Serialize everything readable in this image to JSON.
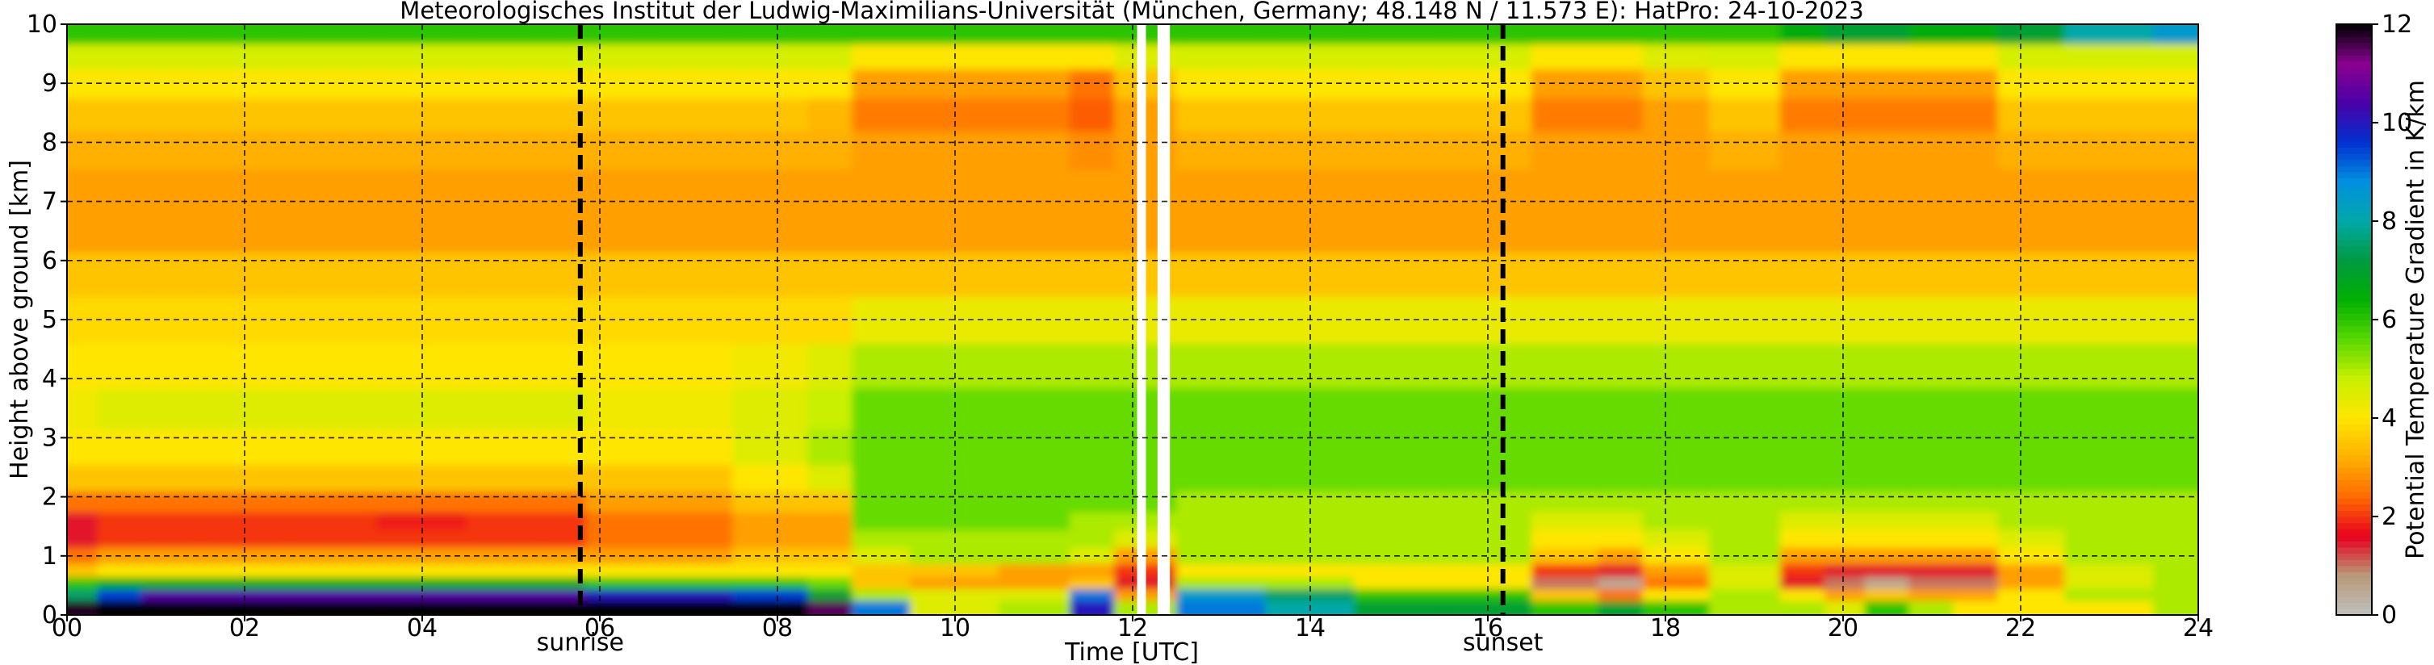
{
  "chart_data": {
    "type": "heatmap",
    "title": "Meteorologisches Institut der Ludwig-Maximilians-Universität (München, Germany; 48.148 N / 11.573 E):    HatPro: 24-10-2023",
    "xlabel": "Time [UTC]",
    "ylabel": "Height above ground [km]",
    "xlim": [
      0,
      24
    ],
    "ylim": [
      0,
      10
    ],
    "x_ticks": [
      0,
      2,
      4,
      6,
      8,
      10,
      12,
      14,
      16,
      18,
      20,
      22,
      24
    ],
    "x_tick_labels": [
      "00",
      "02",
      "04",
      "06",
      "08",
      "10",
      "12",
      "14",
      "16",
      "18",
      "20",
      "22",
      "24"
    ],
    "y_ticks": [
      0,
      1,
      2,
      3,
      4,
      5,
      6,
      7,
      8,
      9,
      10
    ],
    "y_tick_labels": [
      "0",
      "1",
      "2",
      "3",
      "4",
      "5",
      "6",
      "7",
      "8",
      "9",
      "10"
    ],
    "grid": true,
    "colorbar": {
      "label": "Potential Temperature Gradient in K/km",
      "range": [
        0,
        12
      ],
      "ticks": [
        0,
        2,
        4,
        6,
        8,
        10,
        12
      ],
      "tick_labels": [
        "0",
        "2",
        "4",
        "6",
        "8",
        "10",
        "12"
      ],
      "colors": [
        "#c0c0c0",
        "#b89a78",
        "#e8001e",
        "#ff6a00",
        "#ffb000",
        "#ffe600",
        "#c8f000",
        "#58d800",
        "#00b000",
        "#009a40",
        "#00a8a8",
        "#0090e0",
        "#0030d0",
        "#4a00a8",
        "#8a0090",
        "#000000"
      ]
    },
    "events": [
      {
        "label": "sunrise",
        "time": 5.78
      },
      {
        "label": "sunset",
        "time": 16.17
      }
    ],
    "missing_data_intervals": [
      [
        12.05,
        12.15
      ],
      [
        12.28,
        12.42
      ]
    ],
    "field": {
      "x": [
        0,
        0.7,
        1,
        2,
        3,
        4,
        5,
        5.7,
        6,
        7,
        8,
        8.7,
        9,
        10,
        11,
        11.6,
        12,
        13,
        14,
        15,
        16,
        17,
        17.5,
        18,
        19,
        19.6,
        20,
        20.5,
        21,
        21.5,
        22,
        23,
        24
      ],
      "y": [
        0.15,
        0.35,
        0.55,
        0.75,
        1.0,
        1.3,
        1.6,
        1.9,
        2.3,
        2.8,
        3.5,
        4.2,
        5.0,
        5.8,
        6.5,
        7.2,
        7.9,
        8.5,
        9.0,
        9.5,
        9.85
      ],
      "values_by_height": [
        [
          11.8,
          12,
          12,
          12,
          12,
          12,
          12,
          12,
          12,
          12,
          12,
          11.5,
          9,
          4.5,
          5,
          10,
          5,
          9,
          8,
          7,
          7,
          6,
          7,
          6,
          5,
          5,
          4.5,
          6,
          5,
          4,
          4,
          4,
          5
        ],
        [
          7.5,
          9.5,
          10.5,
          10.5,
          10.5,
          10.5,
          10.5,
          10.5,
          10,
          10,
          9.5,
          7,
          5,
          4.5,
          4.5,
          9,
          3,
          8.5,
          7.5,
          6,
          6,
          3.5,
          2.5,
          4,
          5,
          4,
          3,
          3.5,
          3,
          3,
          4,
          5,
          5
        ],
        [
          6,
          6.5,
          6.5,
          6.5,
          6.5,
          6.5,
          6.5,
          6.5,
          6,
          6,
          6,
          5.5,
          3.5,
          3,
          3,
          3.5,
          1.5,
          5,
          5,
          4,
          4,
          1,
          0.5,
          2.5,
          4.5,
          1.5,
          1,
          0.5,
          1,
          1,
          3,
          4.5,
          5
        ],
        [
          3.5,
          4,
          4,
          4,
          4,
          4,
          4,
          4,
          4,
          4,
          4,
          4,
          3.5,
          3.5,
          3,
          3,
          2,
          4,
          4,
          4,
          4,
          2,
          1.5,
          3,
          4.5,
          2,
          1.5,
          1.5,
          1.5,
          1.5,
          3,
          4.5,
          5
        ],
        [
          2.5,
          3,
          3,
          3,
          3,
          3,
          3,
          3,
          3,
          3,
          3.5,
          3.5,
          4.5,
          5,
          5,
          4.5,
          3,
          5,
          5,
          5,
          5,
          3.5,
          3,
          4,
          5,
          3,
          3,
          3,
          3,
          3,
          4,
          5,
          5
        ],
        [
          1.5,
          2,
          2,
          2,
          2,
          2,
          2,
          2,
          2.5,
          2.5,
          3,
          3,
          5,
          5,
          5,
          5,
          4.5,
          5,
          5,
          5,
          5,
          4,
          4,
          4.5,
          5,
          4,
          4,
          4,
          4,
          4,
          4.5,
          5,
          5
        ],
        [
          1.5,
          2,
          2,
          2,
          2,
          1.8,
          2,
          2,
          2.5,
          2.5,
          3,
          3,
          5.5,
          5.5,
          5.5,
          5,
          5,
          5,
          5,
          5,
          5,
          4.5,
          4.5,
          5,
          5,
          4.5,
          4.5,
          4.5,
          4.5,
          4.5,
          5,
          5,
          5
        ],
        [
          2.5,
          2.5,
          2.5,
          2.5,
          2.5,
          2.5,
          2.5,
          2.5,
          3,
          3,
          3.5,
          3.5,
          5.5,
          5.5,
          5.5,
          5.5,
          5.5,
          5,
          5,
          5,
          5,
          5,
          5,
          5,
          5,
          5,
          5,
          5,
          5,
          5,
          5,
          5,
          5
        ],
        [
          3.5,
          3.5,
          3.5,
          3.5,
          3.5,
          3.5,
          3.5,
          3.5,
          3.5,
          3.5,
          4,
          4.5,
          5.5,
          5.5,
          5.5,
          5.5,
          5.5,
          5.5,
          5.5,
          5.5,
          5.5,
          5.5,
          5.5,
          5.5,
          5.5,
          5.5,
          5.5,
          5.5,
          5.5,
          5.5,
          5.5,
          5.5,
          5.5
        ],
        [
          4,
          4,
          4,
          4,
          4,
          4,
          4,
          4,
          4,
          4,
          4.5,
          5,
          5.5,
          5.5,
          5.5,
          5.5,
          5.5,
          5.5,
          5.5,
          5.5,
          5.5,
          5.5,
          5.5,
          5.5,
          5.5,
          5.5,
          5.5,
          5.5,
          5.5,
          5.5,
          5.5,
          5.5,
          5.5
        ],
        [
          4.2,
          4.5,
          4.5,
          4.5,
          4.5,
          4.5,
          4.5,
          4.5,
          4.2,
          4.2,
          4.5,
          4.8,
          5.5,
          5.5,
          5.5,
          5.5,
          5.5,
          5.5,
          5.5,
          5.5,
          5.5,
          5.5,
          5.5,
          5.5,
          5.5,
          5.5,
          5.5,
          5.5,
          5.5,
          5.5,
          5.5,
          5.5,
          5.5
        ],
        [
          4,
          4,
          4,
          4,
          4,
          4,
          4,
          4,
          4,
          4,
          4.2,
          4.5,
          5,
          5,
          5,
          5,
          5,
          5,
          5,
          5,
          5,
          5,
          5,
          5,
          5,
          5,
          5,
          5,
          5,
          5,
          5,
          5,
          5
        ],
        [
          3.8,
          3.8,
          3.8,
          3.8,
          3.8,
          3.8,
          3.8,
          3.8,
          3.8,
          3.8,
          3.8,
          3.8,
          4.3,
          4.3,
          4.3,
          4.3,
          4.3,
          4.3,
          4.3,
          4.3,
          4.3,
          4.3,
          4.3,
          4.3,
          4.3,
          4.3,
          4.3,
          4.3,
          4.3,
          4.3,
          4.3,
          4.3,
          4.3
        ],
        [
          3.5,
          3.5,
          3.5,
          3.5,
          3.5,
          3.5,
          3.5,
          3.5,
          3.5,
          3.5,
          3.5,
          3.5,
          3.5,
          3.5,
          3.5,
          3.5,
          3.5,
          3.5,
          3.5,
          3.5,
          3.5,
          3.5,
          3.5,
          3.5,
          3.5,
          3.5,
          3.5,
          3.5,
          3.5,
          3.5,
          3.5,
          3.5,
          3.5
        ],
        [
          3,
          3,
          3,
          3,
          3,
          3,
          3,
          3,
          3,
          3,
          3,
          3,
          3,
          3,
          3,
          3,
          3,
          3,
          3,
          3,
          3,
          3,
          3,
          3,
          3,
          3,
          3,
          3,
          3,
          3,
          3,
          3,
          3
        ],
        [
          3,
          3,
          3,
          3,
          3,
          3,
          3,
          3,
          3,
          3,
          3,
          3,
          3,
          3,
          3,
          3,
          3,
          3,
          3,
          3,
          3,
          3,
          3,
          3,
          3,
          3,
          3,
          3,
          3,
          3,
          3,
          3,
          3
        ],
        [
          3.2,
          3.2,
          3.2,
          3.2,
          3.2,
          3.2,
          3.2,
          3.2,
          3.2,
          3.2,
          3.2,
          3.2,
          3,
          3,
          3,
          2.8,
          3,
          3.2,
          3.2,
          3.2,
          3.2,
          3,
          3,
          3,
          3.2,
          3,
          3,
          3,
          3,
          3,
          3.2,
          3.2,
          3.2
        ],
        [
          3.5,
          3.5,
          3.5,
          3.5,
          3.5,
          3.5,
          3.5,
          3.5,
          3.5,
          3.5,
          3.5,
          3.3,
          2.6,
          2.6,
          2.6,
          2.3,
          3,
          3.5,
          3.5,
          3.5,
          3.5,
          2.6,
          2.6,
          3,
          3.5,
          2.6,
          2.6,
          2.6,
          2.6,
          2.6,
          3.5,
          3.5,
          3.5
        ],
        [
          4,
          4,
          4,
          4,
          4,
          4,
          4,
          4,
          4,
          4,
          4,
          4,
          3,
          3,
          3,
          2.5,
          3.5,
          4,
          4,
          4,
          4,
          3,
          3,
          3.5,
          4,
          3,
          3,
          3,
          3,
          3,
          4,
          4,
          4
        ],
        [
          4.6,
          4.6,
          4.6,
          4.6,
          4.6,
          4.6,
          4.6,
          4.6,
          4.6,
          4.6,
          4.6,
          4.6,
          4,
          4,
          4,
          4,
          4.5,
          4.6,
          4.6,
          4.6,
          4.6,
          4,
          4,
          4.5,
          4.6,
          4,
          4,
          4,
          4,
          4,
          4.6,
          4.6,
          4.6
        ],
        [
          6,
          6,
          6,
          6,
          6,
          6,
          6,
          6,
          6,
          6,
          6,
          6,
          6,
          6,
          6,
          6,
          6,
          6,
          6,
          6,
          6,
          6,
          6,
          6,
          6,
          6.5,
          7,
          7,
          6.5,
          6.5,
          7,
          8,
          8.5
        ]
      ]
    }
  }
}
